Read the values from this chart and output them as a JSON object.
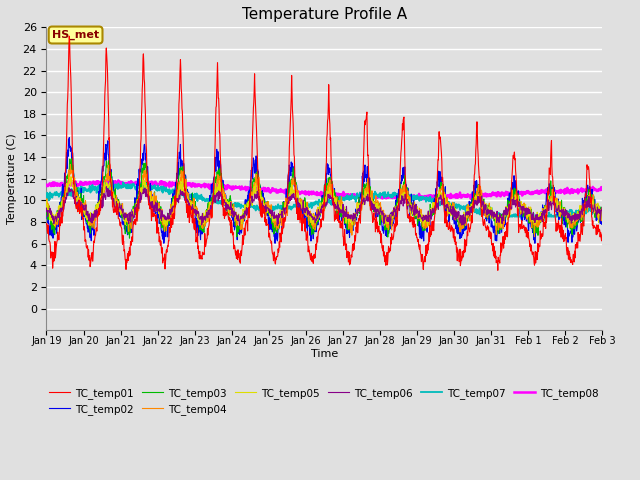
{
  "title": "Temperature Profile A",
  "xlabel": "Time",
  "ylabel": "Temperature (C)",
  "ylim": [
    -2,
    26
  ],
  "yticks": [
    0,
    2,
    4,
    6,
    8,
    10,
    12,
    14,
    16,
    18,
    20,
    22,
    24,
    26
  ],
  "annotation_text": "HS_met",
  "annotation_bg": "#FFFF99",
  "annotation_border": "#AA8800",
  "bg_color": "#E0E0E0",
  "grid_color": "#FFFFFF",
  "series_colors": {
    "TC_temp01": "#FF0000",
    "TC_temp02": "#0000EE",
    "TC_temp03": "#00BB00",
    "TC_temp04": "#FF8800",
    "TC_temp05": "#DDDD00",
    "TC_temp06": "#880088",
    "TC_temp07": "#00BBBB",
    "TC_temp08": "#FF00FF"
  },
  "xtick_labels": [
    "Jan 19",
    "Jan 20",
    "Jan 21",
    "Jan 22",
    "Jan 23",
    "Jan 24",
    "Jan 25",
    "Jan 26",
    "Jan 27",
    "Jan 28",
    "Jan 29",
    "Jan 30",
    "Jan 31",
    "Feb 1",
    "Feb 2",
    "Feb 3"
  ],
  "n_points": 1440
}
